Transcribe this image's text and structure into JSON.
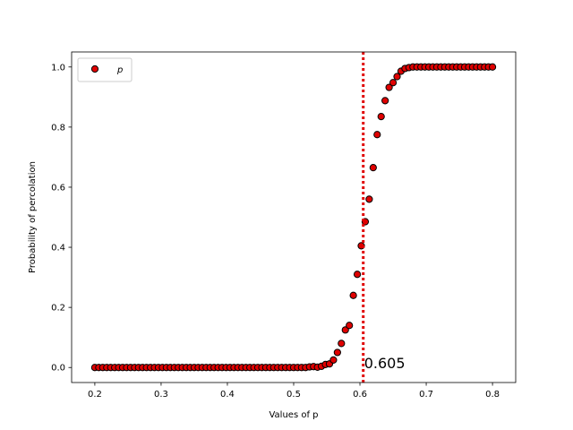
{
  "chart_data": {
    "type": "scatter",
    "xlabel": "Values of p",
    "ylabel": "Probability of percolation",
    "xlim": [
      0.165,
      0.835
    ],
    "ylim": [
      -0.05,
      1.05
    ],
    "xticks": [
      0.2,
      0.3,
      0.4,
      0.5,
      0.6,
      0.7,
      0.8
    ],
    "xtick_labels": [
      "0.2",
      "0.3",
      "0.4",
      "0.5",
      "0.6",
      "0.7",
      "0.8"
    ],
    "yticks": [
      0.0,
      0.2,
      0.4,
      0.6,
      0.8,
      1.0
    ],
    "ytick_labels": [
      "0.0",
      "0.2",
      "0.4",
      "0.6",
      "0.8",
      "1.0"
    ],
    "grid": false,
    "legend": {
      "placement": "upper-left",
      "entries": [
        "p"
      ]
    },
    "colors": {
      "marker_fill": "#e00000",
      "marker_edge": "#000000",
      "threshold_line": "#e00000"
    },
    "series": [
      {
        "name": "p",
        "x": [
          0.2,
          0.206,
          0.212,
          0.218,
          0.224,
          0.23,
          0.236,
          0.242,
          0.248,
          0.254,
          0.26,
          0.266,
          0.272,
          0.278,
          0.284,
          0.29,
          0.296,
          0.302,
          0.308,
          0.314,
          0.32,
          0.326,
          0.332,
          0.338,
          0.344,
          0.35,
          0.356,
          0.362,
          0.368,
          0.374,
          0.38,
          0.386,
          0.392,
          0.398,
          0.404,
          0.41,
          0.416,
          0.422,
          0.428,
          0.434,
          0.44,
          0.446,
          0.452,
          0.458,
          0.464,
          0.47,
          0.476,
          0.482,
          0.488,
          0.494,
          0.5,
          0.506,
          0.512,
          0.518,
          0.524,
          0.53,
          0.536,
          0.542,
          0.548,
          0.554,
          0.56,
          0.566,
          0.572,
          0.578,
          0.584,
          0.59,
          0.596,
          0.602,
          0.608,
          0.614,
          0.62,
          0.626,
          0.632,
          0.638,
          0.644,
          0.65,
          0.656,
          0.662,
          0.668,
          0.674,
          0.68,
          0.686,
          0.692,
          0.698,
          0.704,
          0.71,
          0.716,
          0.722,
          0.728,
          0.734,
          0.74,
          0.746,
          0.752,
          0.758,
          0.764,
          0.77,
          0.776,
          0.782,
          0.788,
          0.794,
          0.8
        ],
        "y": [
          0,
          0,
          0,
          0,
          0,
          0,
          0,
          0,
          0,
          0,
          0,
          0,
          0,
          0,
          0,
          0,
          0,
          0,
          0,
          0,
          0,
          0,
          0,
          0,
          0,
          0,
          0,
          0,
          0,
          0,
          0,
          0,
          0,
          0,
          0,
          0,
          0,
          0,
          0,
          0,
          0,
          0,
          0,
          0,
          0,
          0,
          0,
          0,
          0,
          0,
          0,
          0,
          0,
          0,
          0.002,
          0.003,
          0.001,
          0.004,
          0.01,
          0.012,
          0.025,
          0.05,
          0.08,
          0.125,
          0.14,
          0.24,
          0.31,
          0.405,
          0.485,
          0.56,
          0.665,
          0.775,
          0.835,
          0.888,
          0.932,
          0.948,
          0.968,
          0.986,
          0.995,
          0.998,
          1,
          1,
          1,
          1,
          1,
          1,
          1,
          1,
          1,
          1,
          1,
          1,
          1,
          1,
          1,
          1,
          1,
          1,
          1,
          1,
          1
        ]
      }
    ],
    "threshold": {
      "x": 0.605,
      "label": "0.605",
      "style": "dotted"
    }
  }
}
